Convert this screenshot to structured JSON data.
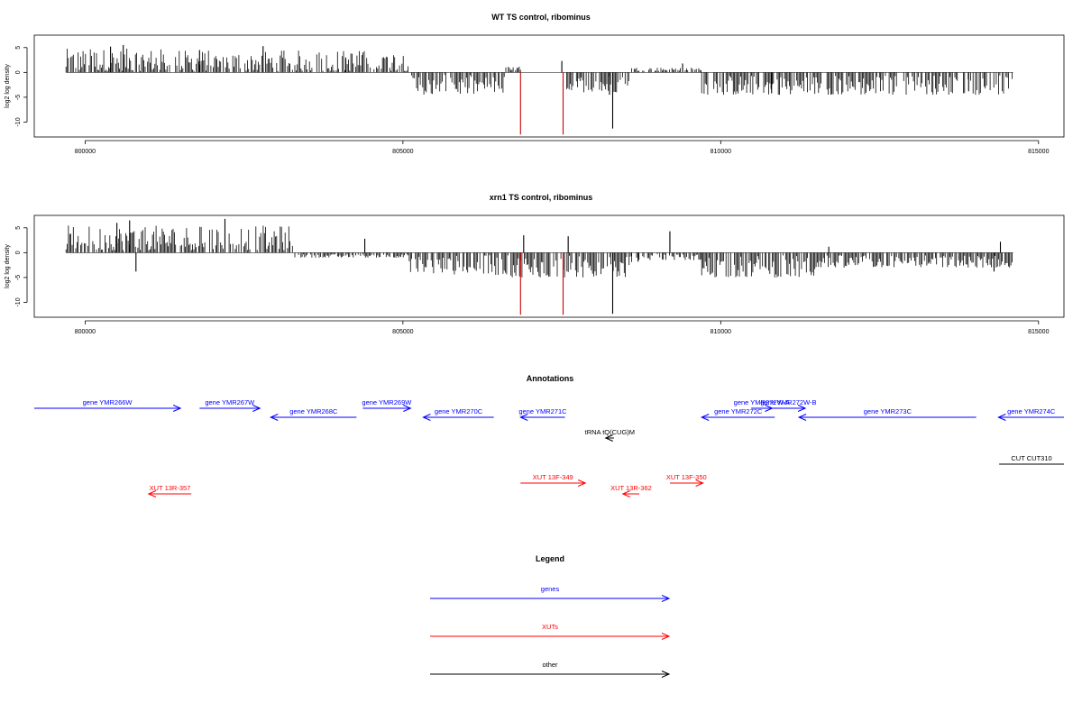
{
  "chart_data": [
    {
      "type": "bar",
      "title": "WT TS control, ribominus",
      "xlabel": "",
      "ylabel": "log2 log density",
      "xlim": [
        799200,
        815400
      ],
      "ylim": [
        -13,
        7.5
      ],
      "xticks": [
        800000,
        805000,
        810000,
        815000
      ],
      "yticks": [
        5,
        0,
        -5,
        -10
      ],
      "grid": false,
      "bar_color": "#000000",
      "highlight_color": "#cc0000",
      "data_x_range": [
        799700,
        814600
      ],
      "segments": [
        {
          "x": [
            799700,
            801500
          ],
          "y": [
            0.3,
            4.8
          ]
        },
        {
          "x": [
            801500,
            803300
          ],
          "y": [
            0.3,
            4.5
          ]
        },
        {
          "x": [
            803300,
            805100
          ],
          "y": [
            0.3,
            4.5
          ]
        },
        {
          "x": [
            805100,
            806600
          ],
          "y": [
            -4.5,
            -0.5
          ]
        },
        {
          "x": [
            806600,
            806850
          ],
          "y": [
            0.3,
            1.2
          ]
        },
        {
          "x": [
            807500,
            808600
          ],
          "y": [
            -4,
            -0.5
          ]
        },
        {
          "x": [
            808600,
            809700
          ],
          "y": [
            0.3,
            1.0
          ]
        },
        {
          "x": [
            809700,
            814600
          ],
          "y": [
            -4.5,
            -0.5
          ]
        }
      ],
      "spikes": [
        {
          "x": 800400,
          "y": 5.2
        },
        {
          "x": 800600,
          "y": 5.5
        },
        {
          "x": 801800,
          "y": 4.5
        },
        {
          "x": 802800,
          "y": 5.3
        },
        {
          "x": 804100,
          "y": 3.0
        },
        {
          "x": 808300,
          "y": -11.3
        },
        {
          "x": 808250,
          "y": -4.5
        },
        {
          "x": 807500,
          "y": 2.3
        },
        {
          "x": 809400,
          "y": 1.8
        },
        {
          "x": 813900,
          "y": -3.8
        },
        {
          "x": 810800,
          "y": -4.2
        }
      ],
      "highlight": [
        {
          "x": 806850,
          "y": -12.5
        },
        {
          "x": 807520,
          "y": -12.5
        }
      ]
    },
    {
      "type": "bar",
      "title": "xrn1 TS control, ribominus",
      "xlabel": "",
      "ylabel": "log2 log density",
      "xlim": [
        799200,
        815400
      ],
      "ylim": [
        -13,
        7.5
      ],
      "xticks": [
        800000,
        805000,
        810000,
        815000
      ],
      "yticks": [
        5,
        0,
        -5,
        -10
      ],
      "grid": false,
      "bar_color": "#000000",
      "highlight_color": "#cc0000",
      "data_x_range": [
        799700,
        814600
      ],
      "segments": [
        {
          "x": [
            799700,
            801500
          ],
          "y": [
            0.5,
            5.5
          ]
        },
        {
          "x": [
            801500,
            803300
          ],
          "y": [
            0.5,
            5.5
          ]
        },
        {
          "x": [
            803300,
            805100
          ],
          "y": [
            -1.0,
            -0.3
          ]
        },
        {
          "x": [
            805100,
            806700
          ],
          "y": [
            -4.5,
            -0.5
          ]
        },
        {
          "x": [
            806700,
            808600
          ],
          "y": [
            -5.0,
            -0.5
          ]
        },
        {
          "x": [
            808600,
            809700
          ],
          "y": [
            -1.5,
            -0.3
          ]
        },
        {
          "x": [
            809700,
            811500
          ],
          "y": [
            -5.0,
            -0.5
          ]
        },
        {
          "x": [
            811500,
            814600
          ],
          "y": [
            -3.0,
            -0.5
          ]
        }
      ],
      "spikes": [
        {
          "x": 800500,
          "y": 6.0
        },
        {
          "x": 800700,
          "y": 6.5
        },
        {
          "x": 802200,
          "y": 6.8
        },
        {
          "x": 800800,
          "y": -3.8
        },
        {
          "x": 806900,
          "y": 3.5
        },
        {
          "x": 807600,
          "y": 3.3
        },
        {
          "x": 809200,
          "y": 4.3
        },
        {
          "x": 808300,
          "y": -12.3
        },
        {
          "x": 804400,
          "y": 2.8
        },
        {
          "x": 811700,
          "y": 1.2
        },
        {
          "x": 814400,
          "y": 2.2
        },
        {
          "x": 814300,
          "y": -3.8
        },
        {
          "x": 808700,
          "y": -1.8
        }
      ],
      "highlight": [
        {
          "x": 806850,
          "y": -12.5
        },
        {
          "x": 807520,
          "y": -12.5
        }
      ]
    }
  ],
  "annotations": {
    "title": "Annotations",
    "colors": {
      "gene": "#0000ff",
      "xut": "#ff0000",
      "other": "#000000"
    },
    "features": [
      {
        "label": "gene YMR266W",
        "kind": "gene",
        "strand": "+",
        "start": 799200,
        "end": 801500,
        "row": 0
      },
      {
        "label": "gene YMR267W",
        "kind": "gene",
        "strand": "+",
        "start": 801800,
        "end": 802750,
        "row": 0
      },
      {
        "label": "gene YMR268C",
        "kind": "gene",
        "strand": "-",
        "start": 802920,
        "end": 804270,
        "row": 1
      },
      {
        "label": "gene YMR269W",
        "kind": "gene",
        "strand": "+",
        "start": 804370,
        "end": 805120,
        "row": 0
      },
      {
        "label": "gene YMR270C",
        "kind": "gene",
        "strand": "-",
        "start": 805320,
        "end": 806430,
        "row": 1
      },
      {
        "label": "gene YMR271C",
        "kind": "gene",
        "strand": "-",
        "start": 806850,
        "end": 807550,
        "row": 1
      },
      {
        "label": "gene YMR272W-A",
        "kind": "gene",
        "strand": "+",
        "start": 810480,
        "end": 810810,
        "row": 0
      },
      {
        "label": "gene YMR272W-B",
        "kind": "gene",
        "strand": "+",
        "start": 810800,
        "end": 811330,
        "row": 0
      },
      {
        "label": "gene YMR272C",
        "kind": "gene",
        "strand": "-",
        "start": 809700,
        "end": 810850,
        "row": 1
      },
      {
        "label": "gene YMR273C",
        "kind": "gene",
        "strand": "-",
        "start": 811230,
        "end": 814020,
        "row": 1
      },
      {
        "label": "gene YMR274C",
        "kind": "gene",
        "strand": "-",
        "start": 814370,
        "end": 815500,
        "row": 1
      },
      {
        "label": "tRNA tQ(CUG)M",
        "kind": "other",
        "strand": "-",
        "start": 808190,
        "end": 808320,
        "row": 2
      },
      {
        "label": "CUT CUT310",
        "kind": "other",
        "strand": ".",
        "start": 814380,
        "end": 815500,
        "row": 3
      },
      {
        "label": "XUT 13F-349",
        "kind": "xut",
        "strand": "+",
        "start": 806850,
        "end": 807870,
        "row": 4
      },
      {
        "label": "XUT 13F-350",
        "kind": "xut",
        "strand": "+",
        "start": 809200,
        "end": 809720,
        "row": 4
      },
      {
        "label": "XUT 13R-357",
        "kind": "xut",
        "strand": "-",
        "start": 801000,
        "end": 801670,
        "row": 5
      },
      {
        "label": "XUT 13R-362",
        "kind": "xut",
        "strand": "-",
        "start": 808460,
        "end": 808720,
        "row": 5
      }
    ]
  },
  "legend": {
    "title": "Legend",
    "items": [
      {
        "label": "genes",
        "color": "#0000ff"
      },
      {
        "label": "XUTs",
        "color": "#ff0000"
      },
      {
        "label": "other",
        "color": "#000000"
      }
    ]
  }
}
